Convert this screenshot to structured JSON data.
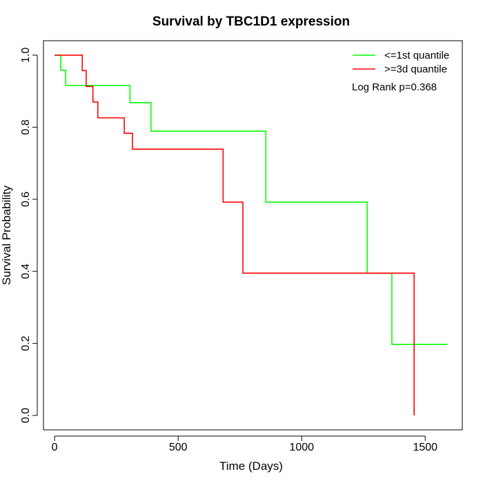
{
  "chart_data": {
    "type": "line",
    "step": true,
    "title": "Survival by TBC1D1 expression",
    "xlabel": "Time (Days)",
    "ylabel": "Survival Probability",
    "xlim": [
      -45,
      1650
    ],
    "ylim": [
      -0.04,
      1.04
    ],
    "xticks": [
      0,
      500,
      1000,
      1500
    ],
    "yticks": [
      0.0,
      0.2,
      0.4,
      0.6,
      0.8,
      1.0
    ],
    "xtick_labels": [
      "0",
      "500",
      "1000",
      "1500"
    ],
    "ytick_labels": [
      "0.0",
      "0.2",
      "0.4",
      "0.6",
      "0.8",
      "1.0"
    ],
    "grid": false,
    "legend_position": "top-right",
    "series": [
      {
        "name": "<=1st quantile",
        "color": "#00ff00",
        "x": [
          0,
          25,
          45,
          305,
          390,
          855,
          1265,
          1365,
          1590
        ],
        "y": [
          1.0,
          0.958,
          0.916,
          0.868,
          0.789,
          0.592,
          0.395,
          0.197,
          0.197
        ]
      },
      {
        "name": ">=3d quantile",
        "color": "#ff0000",
        "x": [
          0,
          112,
          128,
          155,
          175,
          282,
          315,
          682,
          762,
          1455,
          1455
        ],
        "y": [
          1.0,
          0.957,
          0.913,
          0.87,
          0.826,
          0.783,
          0.739,
          0.592,
          0.395,
          0.395,
          0.0
        ]
      }
    ],
    "annotations": [
      "Log Rank p=0.368"
    ]
  }
}
